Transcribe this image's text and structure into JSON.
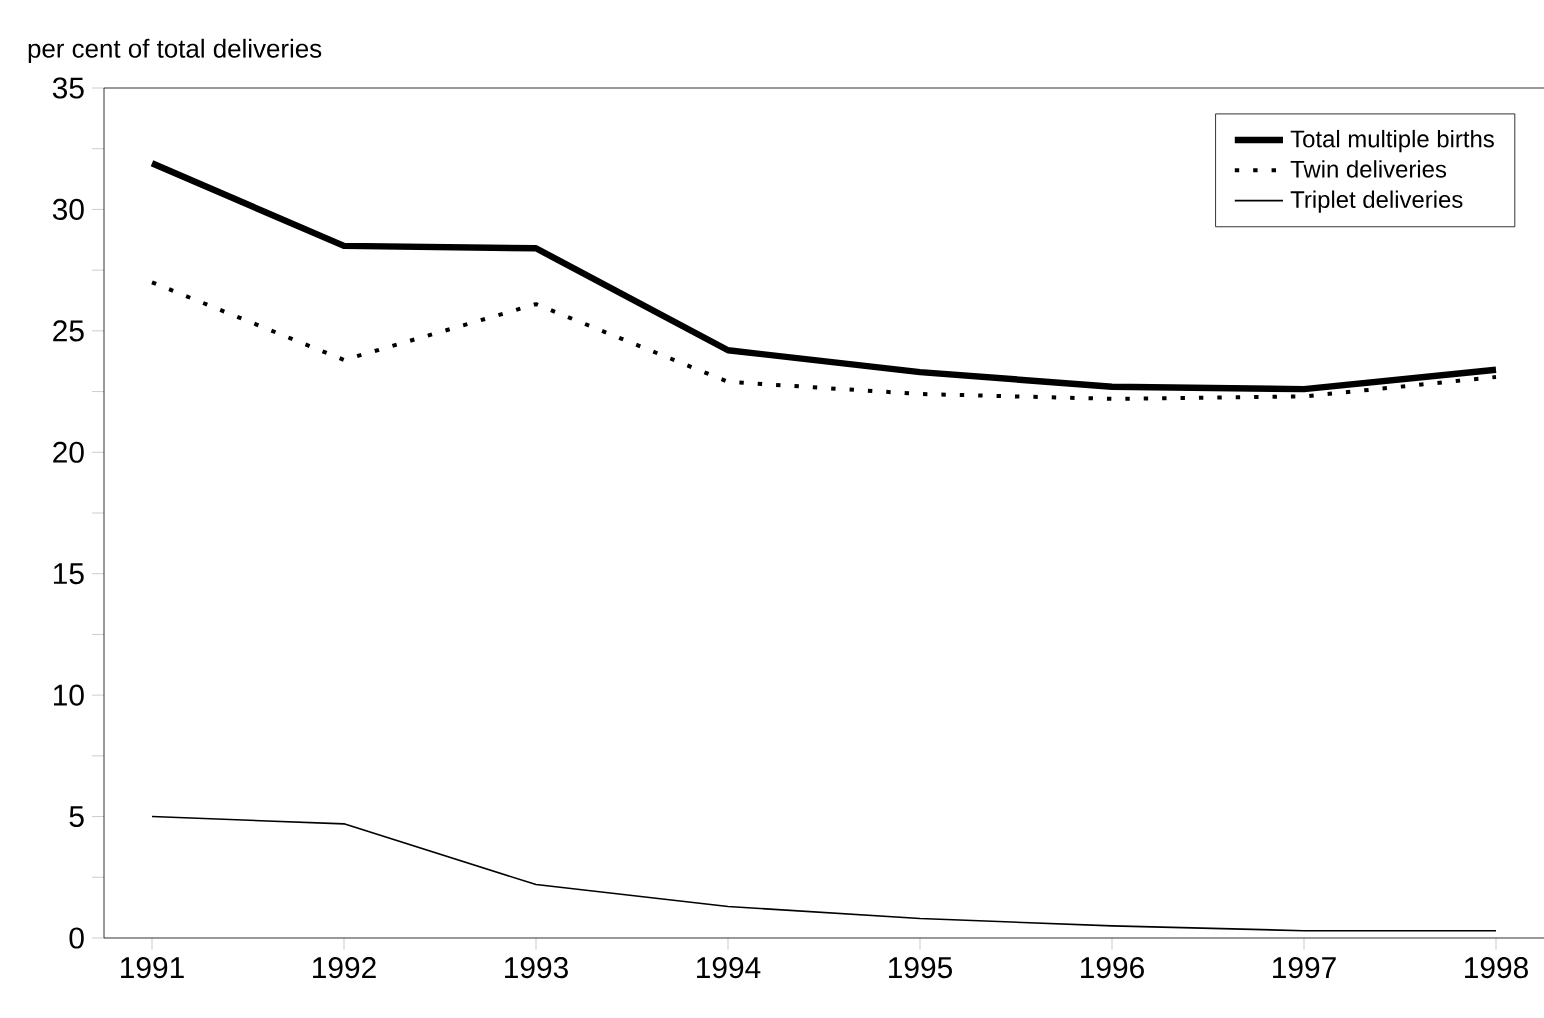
{
  "chart_data": {
    "type": "line",
    "ylabel": "per cent of total deliveries",
    "categories": [
      "1991",
      "1992",
      "1993",
      "1994",
      "1995",
      "1996",
      "1997",
      "1998"
    ],
    "series": [
      {
        "name": "Total multiple births",
        "color": "#000000",
        "line_style": "solid",
        "values": [
          31.9,
          28.5,
          28.4,
          24.2,
          23.3,
          22.7,
          22.6,
          23.4
        ]
      },
      {
        "name": "Twin deliveries",
        "color": "#000000",
        "line_style": "dotted",
        "values": [
          27.0,
          23.8,
          26.1,
          22.9,
          22.4,
          22.2,
          22.3,
          23.1
        ]
      },
      {
        "name": "Triplet deliveries",
        "color": "#000000",
        "line_style": "solid",
        "values": [
          5.0,
          4.7,
          2.2,
          1.3,
          0.8,
          0.5,
          0.3,
          0.3
        ]
      }
    ],
    "ylim": [
      0,
      35
    ],
    "yticks": [
      0,
      5,
      10,
      15,
      20,
      25,
      30,
      35
    ],
    "grid": false,
    "legend": "top right",
    "marker": "none"
  }
}
